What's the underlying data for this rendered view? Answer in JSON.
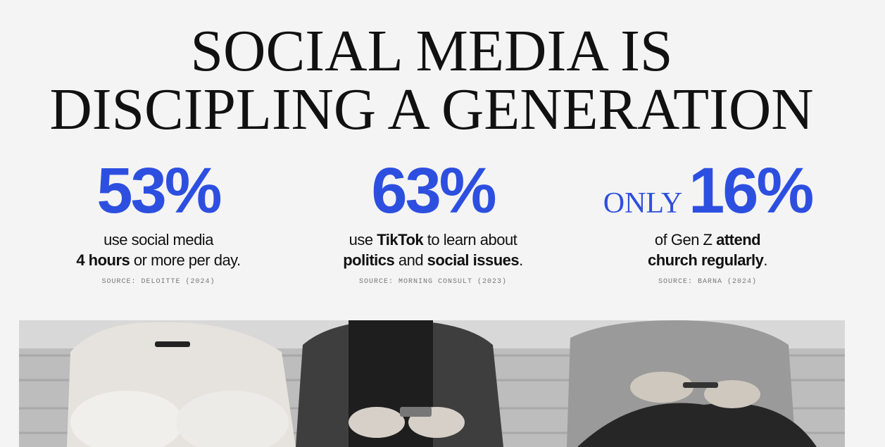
{
  "title": {
    "lines": [
      "SOCIAL MEDIA IS",
      "DISCIPLING A GENERATION"
    ]
  },
  "stats": [
    {
      "figure": "53%",
      "lines": [
        [
          {
            "text": "use social media"
          }
        ],
        [
          {
            "text": "4 hours",
            "bold": true
          },
          {
            "text": " or more per day."
          }
        ]
      ],
      "source": "SOURCE: DELOITTE (2024)"
    },
    {
      "figure": "63%",
      "lines": [
        [
          {
            "text": "use "
          },
          {
            "text": "TikTok",
            "bold": true
          },
          {
            "text": " to learn about"
          }
        ],
        [
          {
            "text": "politics",
            "bold": true
          },
          {
            "text": " and "
          },
          {
            "text": "social issues",
            "bold": true
          },
          {
            "text": "."
          }
        ]
      ],
      "source": "SOURCE: MORNING CONSULT (2023)"
    },
    {
      "prefix": "ONLY",
      "figure": "16%",
      "lines": [
        [
          {
            "text": "of Gen Z "
          },
          {
            "text": "attend",
            "bold": true
          }
        ],
        [
          {
            "text": "church regularly",
            "bold": true
          },
          {
            "text": "."
          }
        ]
      ],
      "source": "SOURCE: BARNA (2024)"
    }
  ]
}
